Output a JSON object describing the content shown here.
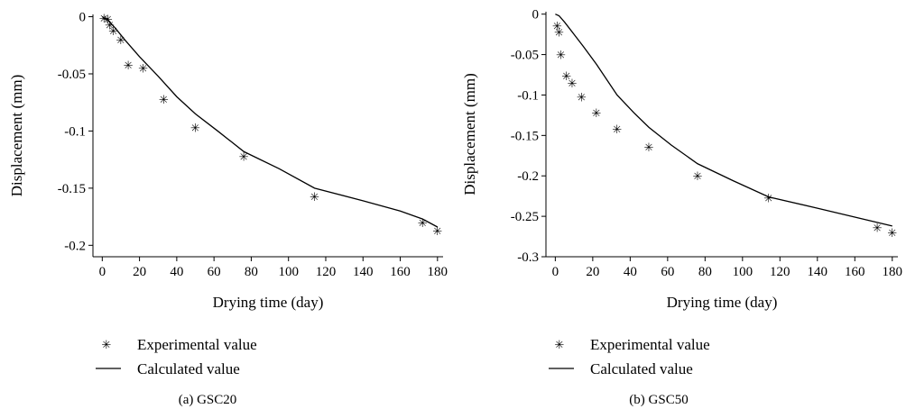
{
  "chart_data": [
    {
      "type": "scatter",
      "caption": "(a)  GSC20",
      "xlabel": "Drying time (day)",
      "ylabel": "Displacement (mm)",
      "xlim": [
        -5,
        183
      ],
      "ylim": [
        -0.21,
        0.002
      ],
      "xticks": [
        "0",
        "20",
        "40",
        "60",
        "80",
        "100",
        "120",
        "140",
        "160",
        "180"
      ],
      "xtick_values": [
        0,
        20,
        40,
        60,
        80,
        100,
        120,
        140,
        160,
        180
      ],
      "yticks": [
        "0",
        "-0.05",
        "-0.1",
        "-0.15",
        "-0.2"
      ],
      "ytick_values": [
        0,
        -0.05,
        -0.1,
        -0.15,
        -0.2
      ],
      "legend_position": "bottom",
      "series": [
        {
          "name": "Experimental value",
          "kind": "marker",
          "x": [
            1,
            3,
            4,
            6,
            10,
            14,
            22,
            33,
            50,
            76,
            114,
            172,
            180
          ],
          "y": [
            -0.001,
            -0.002,
            -0.007,
            -0.012,
            -0.02,
            -0.042,
            -0.045,
            -0.072,
            -0.097,
            -0.122,
            -0.157,
            -0.18,
            -0.187
          ]
        },
        {
          "name": "Calculated value",
          "kind": "line",
          "x": [
            0,
            3,
            7,
            12,
            20,
            30,
            40,
            50,
            62,
            76,
            95,
            114,
            140,
            160,
            172,
            180
          ],
          "y": [
            0,
            -0.003,
            -0.01,
            -0.02,
            -0.035,
            -0.052,
            -0.07,
            -0.085,
            -0.1,
            -0.118,
            -0.133,
            -0.15,
            -0.161,
            -0.17,
            -0.177,
            -0.184
          ]
        }
      ]
    },
    {
      "type": "scatter",
      "caption": "(b)  GSC50",
      "xlabel": "Drying time (day)",
      "ylabel": "Displacement (mm)",
      "xlim": [
        -5,
        183
      ],
      "ylim": [
        -0.3,
        0.003
      ],
      "xticks": [
        "0",
        "20",
        "40",
        "60",
        "80",
        "100",
        "120",
        "140",
        "160",
        "180"
      ],
      "xtick_values": [
        0,
        20,
        40,
        60,
        80,
        100,
        120,
        140,
        160,
        180
      ],
      "yticks": [
        "0",
        "-0.05",
        "-0.1",
        "-0.15",
        "-0.2",
        "-0.25",
        "-0.3"
      ],
      "ytick_values": [
        0,
        -0.05,
        -0.1,
        -0.15,
        -0.2,
        -0.25,
        -0.3
      ],
      "legend_position": "bottom",
      "series": [
        {
          "name": "Experimental value",
          "kind": "marker",
          "x": [
            1,
            2,
            3,
            6,
            9,
            14,
            22,
            33,
            50,
            76,
            114,
            172,
            180
          ],
          "y": [
            -0.014,
            -0.022,
            -0.05,
            -0.076,
            -0.085,
            -0.102,
            -0.122,
            -0.142,
            -0.164,
            -0.2,
            -0.227,
            -0.264,
            -0.27
          ]
        },
        {
          "name": "Calculated value",
          "kind": "line",
          "x": [
            0,
            2,
            5,
            10,
            15,
            22,
            33,
            42,
            50,
            62,
            76,
            95,
            114,
            140,
            160,
            180
          ],
          "y": [
            0,
            -0.002,
            -0.01,
            -0.025,
            -0.04,
            -0.062,
            -0.1,
            -0.122,
            -0.14,
            -0.162,
            -0.185,
            -0.206,
            -0.226,
            -0.24,
            -0.251,
            -0.262
          ]
        }
      ]
    }
  ]
}
